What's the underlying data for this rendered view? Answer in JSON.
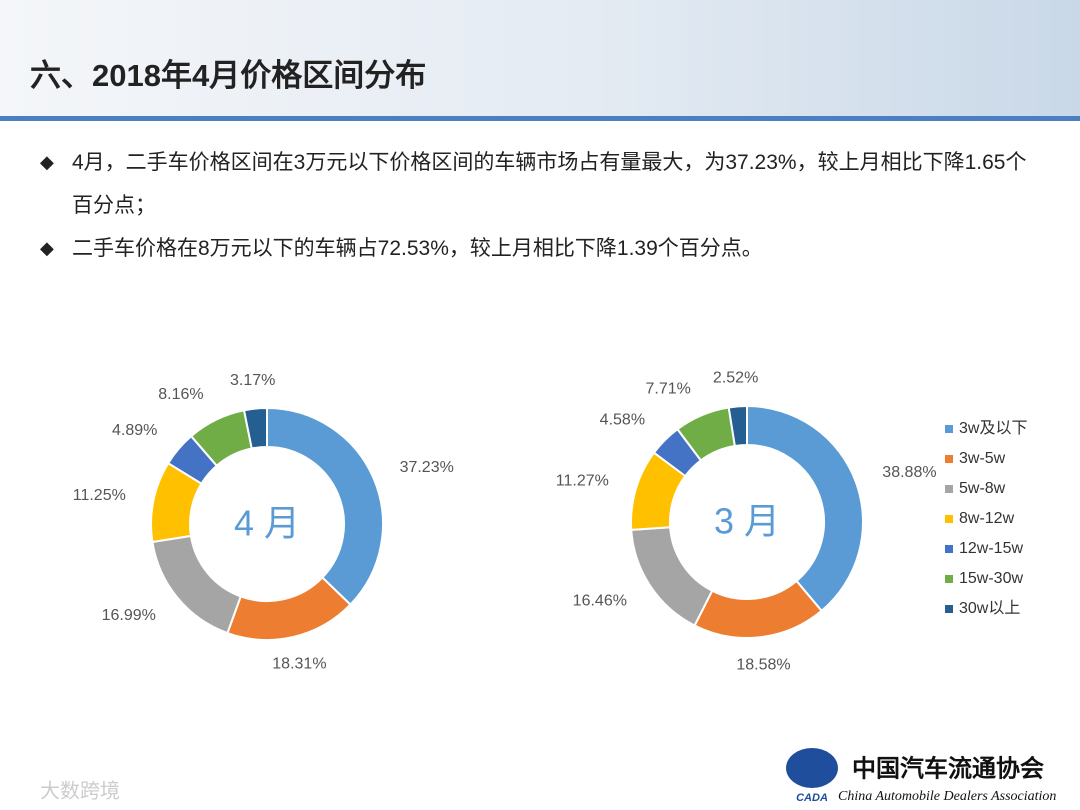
{
  "header": {
    "title": "六、2018年4月价格区间分布"
  },
  "bullets": [
    "4月，二手车价格区间在3万元以下价格区间的车辆市场占有量最大，为37.23%，较上月相比下降1.65个百分点；",
    "二手车价格在8万元以下的车辆占72.53%，较上月相比下降1.39个百分点。"
  ],
  "chart_data": [
    {
      "type": "donut",
      "center_label": "4 月",
      "categories": [
        "3w及以下",
        "3w-5w",
        "5w-8w",
        "8w-12w",
        "12w-15w",
        "15w-30w",
        "30w以上"
      ],
      "values": [
        37.23,
        18.31,
        16.99,
        11.25,
        4.89,
        8.16,
        3.17
      ],
      "value_labels": [
        "37.23%",
        "18.31%",
        "16.99%",
        "11.25%",
        "4.89%",
        "8.16%",
        "3.17%"
      ],
      "colors": [
        "#5b9bd5",
        "#ed7d31",
        "#a5a5a5",
        "#ffc000",
        "#4472c4",
        "#70ad47",
        "#255e91"
      ]
    },
    {
      "type": "donut",
      "center_label": "3 月",
      "categories": [
        "3w及以下",
        "3w-5w",
        "5w-8w",
        "8w-12w",
        "12w-15w",
        "15w-30w",
        "30w以上"
      ],
      "values": [
        38.88,
        18.58,
        16.46,
        11.27,
        4.58,
        7.71,
        2.52
      ],
      "value_labels": [
        "38.88%",
        "18.58%",
        "16.46%",
        "11.27%",
        "4.58%",
        "7.71%",
        "2.52%"
      ],
      "colors": [
        "#5b9bd5",
        "#ed7d31",
        "#a5a5a5",
        "#ffc000",
        "#4472c4",
        "#70ad47",
        "#255e91"
      ],
      "legend": "right"
    }
  ],
  "logo": {
    "name": "中国汽车流通协会",
    "english": "China Automobile Dealers Association",
    "abbr": "CADA"
  },
  "watermark": "大数跨境"
}
